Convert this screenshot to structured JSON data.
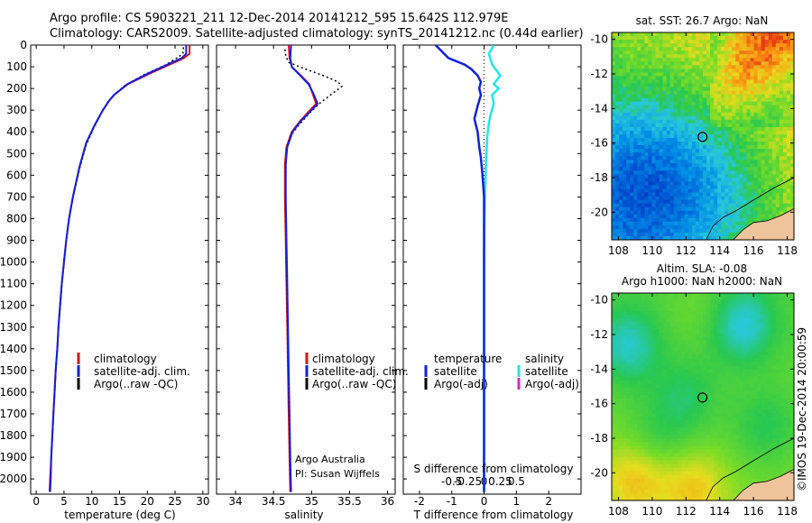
{
  "header": {
    "line1": "Argo profile: CS 5903221_211 12-Dec-2014 20141212_595 15.642S 112.979E",
    "line2": "Climatology: CARS2009. Satellite-adjusted climatology: synTS_20141212.nc (0.44d earlier)"
  },
  "footer_credit": "©IMOS 19-Dec-2014 20:00:59",
  "colors": {
    "climatology": "#e01010",
    "satellite": "#1020e0",
    "argo": "#000000",
    "sal_satellite": "#22e6e6",
    "sal_argo": "#e020e0"
  },
  "chart_data": [
    {
      "type": "line",
      "panel": "temperature",
      "xlabel": "temperature (deg C)",
      "ylabel": "",
      "xlim": [
        -1,
        31
      ],
      "ylim": [
        2070,
        0
      ],
      "x_ticks": [
        0,
        5,
        10,
        15,
        20,
        25,
        30
      ],
      "y_ticks": [
        0,
        100,
        200,
        300,
        400,
        500,
        600,
        700,
        800,
        900,
        1000,
        1100,
        1200,
        1300,
        1400,
        1500,
        1600,
        1700,
        1800,
        1900,
        2000
      ],
      "legend": [
        "climatology",
        "satellite-adj. clim.",
        "Argo(..raw -QC)"
      ],
      "series": [
        {
          "name": "climatology",
          "points": [
            [
              27.6,
              0
            ],
            [
              27.6,
              40
            ],
            [
              26.6,
              60
            ],
            [
              24.0,
              90
            ],
            [
              20.5,
              130
            ],
            [
              16.5,
              180
            ],
            [
              14.0,
              230
            ],
            [
              13.0,
              260
            ],
            [
              12.0,
              300
            ],
            [
              10.5,
              370
            ],
            [
              9.0,
              450
            ],
            [
              7.8,
              560
            ],
            [
              6.6,
              700
            ],
            [
              5.9,
              800
            ],
            [
              5.4,
              900
            ],
            [
              5.0,
              1000
            ],
            [
              4.6,
              1100
            ],
            [
              4.3,
              1200
            ],
            [
              4.0,
              1300
            ],
            [
              3.8,
              1400
            ],
            [
              3.5,
              1500
            ],
            [
              3.3,
              1600
            ],
            [
              3.1,
              1700
            ],
            [
              2.9,
              1800
            ],
            [
              2.7,
              1900
            ],
            [
              2.5,
              2000
            ],
            [
              2.4,
              2060
            ]
          ]
        },
        {
          "name": "satellite-adj. clim.",
          "points": [
            [
              27.0,
              0
            ],
            [
              27.0,
              40
            ],
            [
              26.2,
              60
            ],
            [
              23.6,
              90
            ],
            [
              20.2,
              130
            ],
            [
              16.4,
              180
            ],
            [
              14.0,
              230
            ],
            [
              13.0,
              260
            ],
            [
              12.0,
              300
            ],
            [
              10.5,
              370
            ],
            [
              9.0,
              450
            ],
            [
              7.8,
              560
            ],
            [
              6.6,
              700
            ],
            [
              5.9,
              800
            ],
            [
              5.4,
              900
            ],
            [
              5.0,
              1000
            ],
            [
              4.6,
              1100
            ],
            [
              4.3,
              1200
            ],
            [
              4.0,
              1300
            ],
            [
              3.8,
              1400
            ],
            [
              3.5,
              1500
            ],
            [
              3.3,
              1600
            ],
            [
              3.1,
              1700
            ],
            [
              2.9,
              1800
            ],
            [
              2.7,
              1900
            ],
            [
              2.6,
              2000
            ],
            [
              2.5,
              2060
            ]
          ]
        },
        {
          "name": "Argo(..raw -QC)",
          "points": [
            [
              26.5,
              10
            ],
            [
              26.4,
              40
            ],
            [
              25.0,
              65
            ],
            [
              23.0,
              95
            ],
            [
              19.5,
              135
            ],
            [
              16.0,
              185
            ],
            [
              13.8,
              235
            ],
            [
              12.8,
              270
            ],
            [
              11.8,
              310
            ],
            [
              10.4,
              380
            ],
            [
              9.0,
              460
            ],
            [
              7.8,
              570
            ],
            [
              6.6,
              705
            ],
            [
              5.9,
              805
            ],
            [
              5.4,
              905
            ],
            [
              5.0,
              1005
            ],
            [
              4.6,
              1105
            ],
            [
              4.3,
              1205
            ],
            [
              4.0,
              1305
            ],
            [
              3.8,
              1405
            ],
            [
              3.5,
              1505
            ],
            [
              3.3,
              1605
            ],
            [
              3.1,
              1705
            ],
            [
              2.9,
              1805
            ],
            [
              2.7,
              1905
            ],
            [
              2.6,
              2005
            ]
          ]
        }
      ]
    },
    {
      "type": "line",
      "panel": "salinity",
      "xlabel": "salinity",
      "xlim": [
        33.75,
        36.1
      ],
      "ylim": [
        2070,
        0
      ],
      "x_ticks": [
        34,
        34.5,
        35,
        35.5,
        36
      ],
      "legend": [
        "climatology",
        "satellite-adj. clim.",
        "Argo(..raw -QC)"
      ],
      "annotation": [
        "Argo Australia",
        "PI: Susan Wijffels"
      ],
      "series": [
        {
          "name": "climatology",
          "points": [
            [
              34.7,
              0
            ],
            [
              34.71,
              60
            ],
            [
              34.74,
              100
            ],
            [
              34.86,
              140
            ],
            [
              34.97,
              180
            ],
            [
              35.01,
              220
            ],
            [
              35.06,
              270
            ],
            [
              34.98,
              300
            ],
            [
              34.85,
              350
            ],
            [
              34.74,
              400
            ],
            [
              34.67,
              470
            ],
            [
              34.65,
              550
            ],
            [
              34.65,
              700
            ],
            [
              34.66,
              900
            ],
            [
              34.67,
              1100
            ],
            [
              34.68,
              1300
            ],
            [
              34.69,
              1500
            ],
            [
              34.7,
              1700
            ],
            [
              34.71,
              1900
            ],
            [
              34.72,
              2060
            ]
          ]
        },
        {
          "name": "satellite-adj. clim.",
          "points": [
            [
              34.73,
              0
            ],
            [
              34.72,
              60
            ],
            [
              34.74,
              100
            ],
            [
              34.85,
              140
            ],
            [
              34.96,
              180
            ],
            [
              35.02,
              220
            ],
            [
              35.08,
              270
            ],
            [
              35.0,
              300
            ],
            [
              34.86,
              350
            ],
            [
              34.75,
              400
            ],
            [
              34.68,
              470
            ],
            [
              34.66,
              550
            ],
            [
              34.66,
              700
            ],
            [
              34.67,
              900
            ],
            [
              34.68,
              1100
            ],
            [
              34.69,
              1300
            ],
            [
              34.7,
              1500
            ],
            [
              34.71,
              1700
            ],
            [
              34.72,
              1900
            ],
            [
              34.73,
              2060
            ]
          ]
        },
        {
          "name": "Argo(..raw -QC)",
          "points": [
            [
              34.65,
              20
            ],
            [
              34.66,
              50
            ],
            [
              34.7,
              80
            ],
            [
              34.92,
              110
            ],
            [
              35.15,
              140
            ],
            [
              35.35,
              170
            ],
            [
              35.4,
              190
            ],
            [
              35.25,
              230
            ],
            [
              35.1,
              270
            ],
            [
              34.96,
              320
            ],
            [
              34.83,
              370
            ],
            [
              34.72,
              420
            ],
            [
              34.67,
              480
            ],
            [
              34.66,
              600
            ],
            [
              34.66,
              800
            ],
            [
              34.67,
              1000
            ],
            [
              34.68,
              1200
            ],
            [
              34.69,
              1400
            ],
            [
              34.7,
              1600
            ],
            [
              34.71,
              1800
            ],
            [
              34.72,
              1990
            ]
          ]
        }
      ]
    },
    {
      "type": "line",
      "panel": "difference",
      "xlabel": "T difference from climatology",
      "top_label": "S difference from climatology",
      "xlim": [
        -2.5,
        3.0
      ],
      "ylim": [
        2070,
        0
      ],
      "x_ticks": [
        -2,
        -1,
        0,
        1,
        2
      ],
      "s_ticks_labels": [
        "-0.5",
        "-0.25",
        "0",
        "0.25",
        "0.5"
      ],
      "legend_left_title": "temperature",
      "legend_right_title": "salinity",
      "legend_left": [
        "satellite",
        "Argo(-adj)"
      ],
      "legend_right": [
        "satellite",
        "Argo(-adj)"
      ],
      "series": [
        {
          "name": "T satellite",
          "points": [
            [
              -1.5,
              0
            ],
            [
              -1.1,
              60
            ],
            [
              -0.6,
              90
            ],
            [
              -0.4,
              110
            ],
            [
              -0.2,
              140
            ],
            [
              -0.1,
              170
            ],
            [
              -0.15,
              200
            ],
            [
              -0.1,
              230
            ],
            [
              -0.2,
              280
            ],
            [
              -0.3,
              340
            ],
            [
              -0.2,
              400
            ],
            [
              -0.15,
              470
            ],
            [
              -0.1,
              520
            ],
            [
              -0.05,
              600
            ],
            [
              0,
              700
            ],
            [
              0,
              1000
            ],
            [
              0,
              1500
            ],
            [
              0,
              2060
            ]
          ]
        },
        {
          "name": "S satellite",
          "points": [
            [
              0.3,
              0
            ],
            [
              0.15,
              40
            ],
            [
              0.25,
              90
            ],
            [
              0.5,
              140
            ],
            [
              0.3,
              180
            ],
            [
              0.45,
              200
            ],
            [
              0.25,
              230
            ],
            [
              0.3,
              270
            ],
            [
              0.2,
              320
            ],
            [
              0.15,
              360
            ],
            [
              0.1,
              420
            ],
            [
              0.07,
              500
            ],
            [
              0.05,
              600
            ],
            [
              0.02,
              700
            ],
            [
              0,
              1000
            ],
            [
              0,
              1500
            ],
            [
              0,
              2060
            ]
          ]
        }
      ]
    },
    {
      "type": "heatmap",
      "panel": "sst-map",
      "title": "sat. SST: 26.7 Argo: NaN",
      "x_ticks": [
        108,
        110,
        112,
        114,
        116,
        118
      ],
      "y_ticks": [
        -10,
        -12,
        -14,
        -16,
        -18,
        -20
      ],
      "xlim": [
        107.6,
        118.4
      ],
      "ylim": [
        -21.6,
        -9.6
      ],
      "marker": {
        "lon": 112.979,
        "lat": -15.642
      }
    },
    {
      "type": "heatmap",
      "panel": "sla-map",
      "title_line1": "Altim. SLA: -0.08",
      "title_line2": "Argo h1000: NaN h2000: NaN",
      "x_ticks": [
        108,
        110,
        112,
        114,
        116,
        118
      ],
      "y_ticks": [
        -10,
        -12,
        -14,
        -16,
        -18,
        -20
      ],
      "xlim": [
        107.6,
        118.4
      ],
      "ylim": [
        -21.6,
        -9.6
      ],
      "marker": {
        "lon": 112.979,
        "lat": -15.642
      }
    }
  ]
}
